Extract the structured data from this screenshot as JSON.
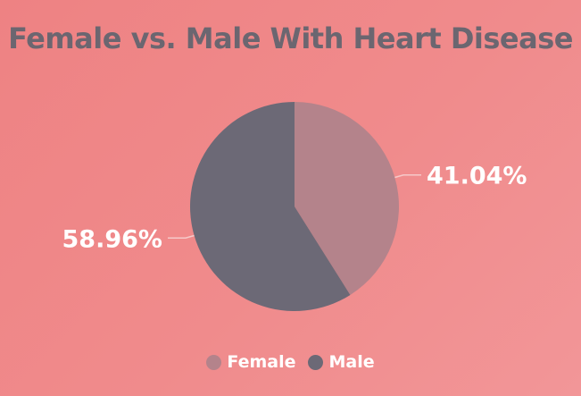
{
  "colors": {
    "female": "#b4838b",
    "male": "#6c6976",
    "label_text": "#ffffff",
    "leader_line": "#f6c9c9"
  },
  "chart_data": {
    "type": "pie",
    "title": "Female vs. Male With Heart Disease",
    "categories": [
      "Female",
      "Male"
    ],
    "values": [
      41.04,
      58.96
    ],
    "value_unit": "%",
    "data_labels": [
      "41.04%",
      "58.96%"
    ],
    "legend": {
      "position": "bottom",
      "entries": [
        "Female",
        "Male"
      ]
    }
  }
}
